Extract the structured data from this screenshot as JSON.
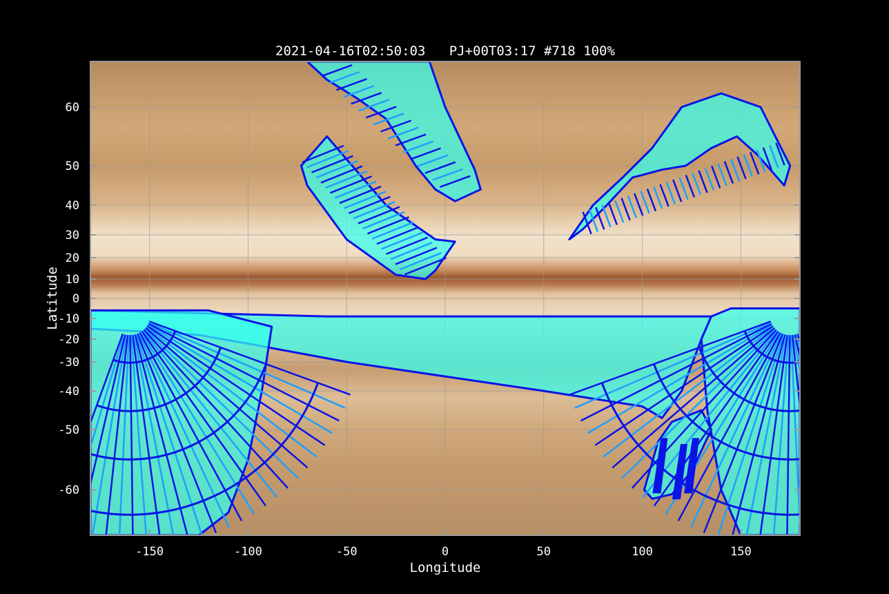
{
  "figure": {
    "title": "2021-04-16T02:50:03   PJ+00T03:17 #718 100%"
  },
  "chart_data": {
    "type": "scatter",
    "title": "2021-04-16T02:50:03   PJ+00T03:17 #718 100%",
    "xlabel": "Longitude",
    "ylabel": "Latitude",
    "xlim": [
      -180,
      180
    ],
    "ylim": [
      -70,
      70
    ],
    "y_scale": "planetographic (non-linear, expanded toward poles)",
    "x_ticks": [
      -150,
      -100,
      -50,
      0,
      50,
      100,
      150
    ],
    "y_ticks": [
      60,
      50,
      40,
      30,
      20,
      10,
      0,
      -10,
      -20,
      -30,
      -40,
      -50,
      -60
    ],
    "grid": true,
    "background": "Jupiter cylindrical map",
    "colors": {
      "footprint_fill": "#33ffee",
      "footprint_edge": "#0a14e6",
      "footprint_edge_light": "#1f9fff",
      "grid": "#9a9a9a",
      "frame": "#9a9a9a"
    },
    "footprint_regions": [
      {
        "name": "north-mid swath",
        "points": [
          [
            -73,
            50
          ],
          [
            -60,
            55
          ],
          [
            -30,
            40
          ],
          [
            -5,
            28
          ],
          [
            5,
            27
          ],
          [
            -5,
            14
          ],
          [
            -10,
            10
          ],
          [
            -25,
            12
          ],
          [
            -50,
            28
          ],
          [
            -70,
            45
          ]
        ]
      },
      {
        "name": "north-upper swath",
        "points": [
          [
            -70,
            70
          ],
          [
            -35,
            70
          ],
          [
            -8,
            70
          ],
          [
            0,
            60
          ],
          [
            15,
            49
          ],
          [
            18,
            44
          ],
          [
            5,
            41
          ],
          [
            -5,
            44
          ],
          [
            -15,
            50
          ],
          [
            -30,
            58
          ],
          [
            -45,
            62
          ],
          [
            -60,
            66
          ]
        ]
      },
      {
        "name": "north-east arc",
        "points": [
          [
            63,
            28
          ],
          [
            75,
            40
          ],
          [
            90,
            47
          ],
          [
            105,
            53
          ],
          [
            120,
            60
          ],
          [
            140,
            63
          ],
          [
            160,
            60
          ],
          [
            175,
            50
          ],
          [
            172,
            45
          ],
          [
            158,
            52
          ],
          [
            148,
            55
          ],
          [
            135,
            53
          ],
          [
            122,
            50
          ],
          [
            110,
            49
          ],
          [
            95,
            47
          ],
          [
            82,
            40
          ],
          [
            70,
            32
          ]
        ]
      },
      {
        "name": "southern band",
        "points": [
          [
            -180,
            -6
          ],
          [
            -100,
            -8
          ],
          [
            -60,
            -9
          ],
          [
            0,
            -9
          ],
          [
            60,
            -9
          ],
          [
            135,
            -9
          ],
          [
            130,
            -20
          ],
          [
            120,
            -40
          ],
          [
            110,
            -47
          ],
          [
            100,
            -44
          ],
          [
            50,
            -40
          ],
          [
            0,
            -35
          ],
          [
            -50,
            -30
          ],
          [
            -100,
            -22
          ],
          [
            -125,
            -18
          ],
          [
            -140,
            -17
          ],
          [
            -180,
            -15
          ]
        ]
      },
      {
        "name": "south-west fan",
        "points": [
          [
            -180,
            -6
          ],
          [
            -120,
            -6
          ],
          [
            -88,
            -14
          ],
          [
            -93,
            -40
          ],
          [
            -100,
            -55
          ],
          [
            -110,
            -65
          ],
          [
            -125,
            -70
          ],
          [
            -180,
            -70
          ]
        ]
      },
      {
        "name": "south-east fan",
        "points": [
          [
            135,
            -9
          ],
          [
            145,
            -5
          ],
          [
            180,
            -5
          ],
          [
            180,
            -70
          ],
          [
            150,
            -70
          ],
          [
            140,
            -60
          ],
          [
            133,
            -45
          ],
          [
            130,
            -20
          ]
        ]
      },
      {
        "name": "south-east small blocks",
        "points": [
          [
            101,
            -60
          ],
          [
            108,
            -52
          ],
          [
            115,
            -48
          ],
          [
            130,
            -45
          ],
          [
            135,
            -50
          ],
          [
            125,
            -57
          ],
          [
            115,
            -61
          ],
          [
            105,
            -62
          ]
        ]
      }
    ]
  }
}
